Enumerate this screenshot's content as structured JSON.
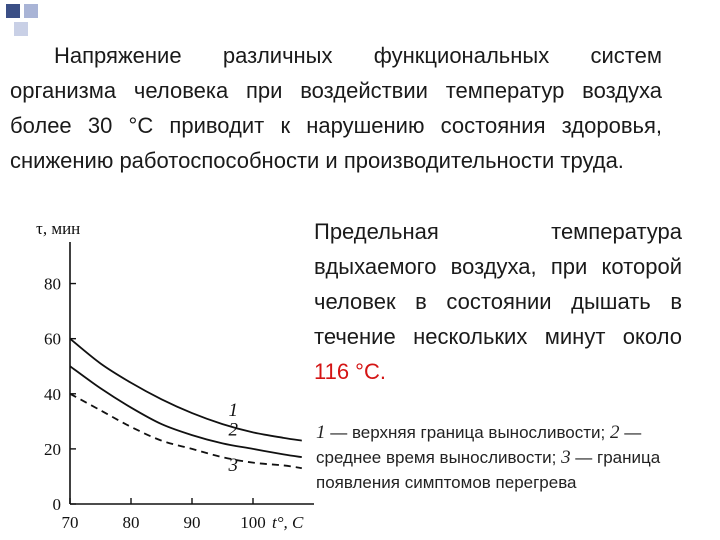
{
  "intro_text": "Напряжение различных функциональных систем организма человека при воздействии температур воздуха более 30 °С приводит к нарушению состояния здоровья, снижению работоспособности и производительности труда.",
  "note": {
    "text": "Предельная температура вдыхаемого воздуха, при которой человек в состоянии дышать в течение нескольких минут около ",
    "highlight": "116 °С.",
    "highlight_color": "#d41414"
  },
  "legend": {
    "n1": "1",
    "t1": " — верхняя граница выносливости; ",
    "n2": "2",
    "t2": " — среднее время выносливости; ",
    "n3": "3",
    "t3": " — граница появления симптомов перегрева"
  },
  "colors": {
    "bullet": "#3b4f86",
    "bullet_light": "#a9b4d6",
    "curve": "#111111"
  },
  "chart_data": {
    "type": "line",
    "xlabel": "t°, С",
    "ylabel": "τ, мин",
    "xlim": [
      70,
      110
    ],
    "ylim": [
      0,
      90
    ],
    "xticks": [
      70,
      80,
      90,
      100
    ],
    "yticks": [
      0,
      20,
      40,
      60,
      80
    ],
    "grid": false,
    "series": [
      {
        "name": "1",
        "style": "solid",
        "x": [
          70,
          75,
          80,
          85,
          90,
          95,
          100,
          105,
          108
        ],
        "y": [
          60,
          51,
          44,
          38,
          33,
          29,
          26,
          24,
          23
        ]
      },
      {
        "name": "2",
        "style": "solid",
        "x": [
          70,
          75,
          80,
          85,
          90,
          95,
          100,
          105,
          108
        ],
        "y": [
          50,
          42,
          35,
          29,
          25,
          22,
          20,
          18,
          17
        ]
      },
      {
        "name": "3",
        "style": "dashed",
        "x": [
          70,
          75,
          80,
          85,
          90,
          95,
          100,
          105,
          108
        ],
        "y": [
          40,
          34,
          28,
          23,
          20,
          17,
          15,
          14,
          13
        ]
      }
    ]
  }
}
